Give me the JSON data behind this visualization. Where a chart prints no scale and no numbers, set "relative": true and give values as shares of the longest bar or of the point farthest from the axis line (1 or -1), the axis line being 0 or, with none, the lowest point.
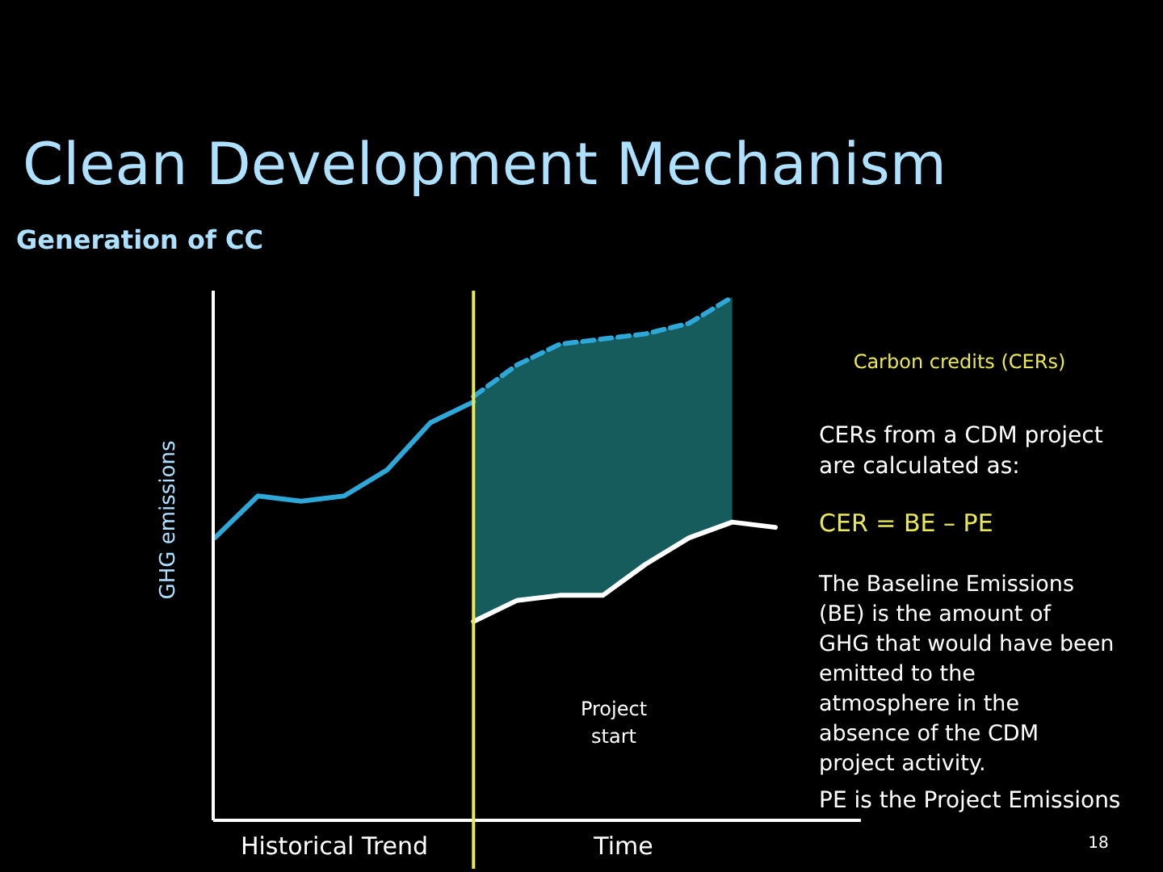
{
  "chart_data": {
    "type": "line",
    "relative": true,
    "title": "Clean Development Mechanism",
    "subtitle": "Generation of CC",
    "ylabel": "GHG emissions",
    "categories": [
      null,
      null,
      null,
      null,
      null,
      null,
      null,
      null,
      null,
      null,
      null,
      null,
      null,
      null
    ],
    "series": [
      {
        "color": "#2ea8d8",
        "line_style": "solid",
        "values": [
          0.54,
          0.62,
          0.61,
          0.62,
          0.67,
          0.76,
          0.8,
          null,
          null,
          null,
          null,
          null,
          null,
          null
        ]
      },
      {
        "color": "#2ea8d8",
        "line_style": "dashed",
        "values": [
          null,
          null,
          null,
          null,
          null,
          null,
          0.81,
          0.87,
          0.91,
          0.92,
          0.93,
          0.95,
          1.0,
          null
        ],
        "lower": [
          null,
          null,
          null,
          null,
          null,
          null,
          0.38,
          0.42,
          0.43,
          0.43,
          0.49,
          0.54,
          0.57,
          null
        ],
        "upper": [
          null,
          null,
          null,
          null,
          null,
          null,
          0.81,
          0.87,
          0.91,
          0.92,
          0.93,
          0.95,
          1.0,
          null
        ]
      },
      {
        "color": "#ffffff",
        "line_style": "solid",
        "values": [
          null,
          null,
          null,
          null,
          null,
          null,
          0.38,
          0.42,
          0.43,
          0.43,
          0.49,
          0.54,
          0.57,
          0.56
        ]
      }
    ],
    "ref_lines": [
      {
        "axis": "x",
        "label": "Project start",
        "color": "#e8e85a"
      }
    ],
    "annotations": [
      "Carbon credits (CERs)",
      "CERs from a CDM project are calculated as:",
      "CER = BE – PE",
      "The Baseline Emissions (BE) is the amount of GHG that would have been emitted to the atmosphere in the absence of the CDM project activity.",
      "PE is the Project Emissions",
      "Historical Trend",
      "Time",
      "18"
    ],
    "marker": "none"
  }
}
